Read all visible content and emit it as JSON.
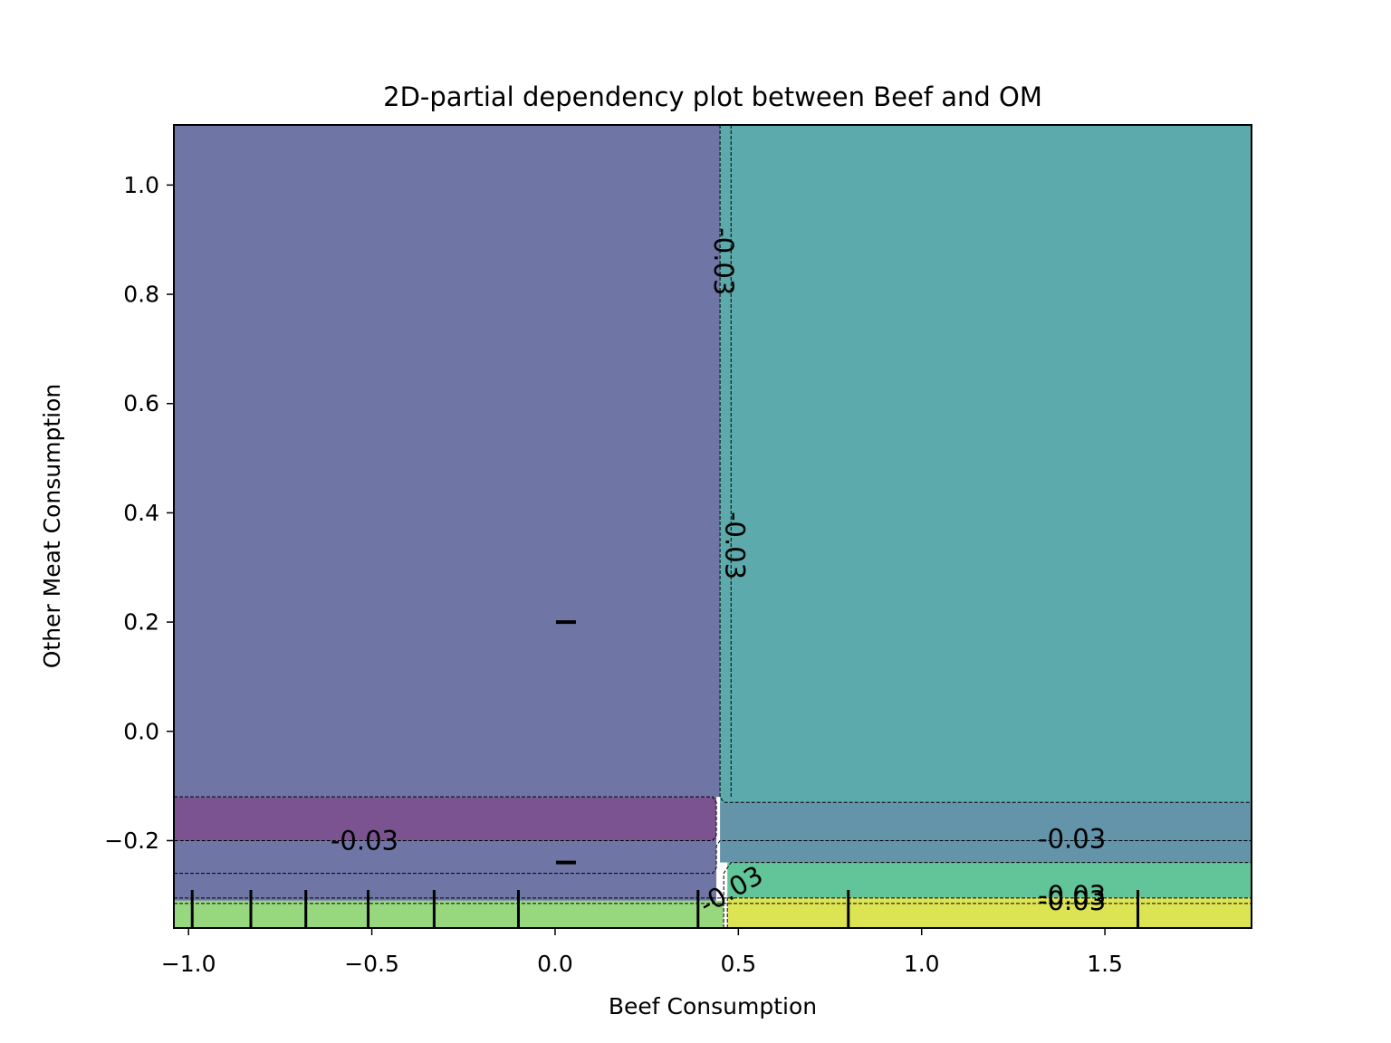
{
  "chart_data": {
    "type": "heatmap",
    "subtype": "filled-contour",
    "title": "2D-partial dependency plot between Beef and OM",
    "xlabel": "Beef Consumption",
    "ylabel": "Other Meat Consumption",
    "xlim": [
      -1.04,
      1.9
    ],
    "ylim": [
      -0.36,
      1.11
    ],
    "x_ticks": [
      -1.0,
      -0.5,
      0.0,
      0.5,
      1.0,
      1.5
    ],
    "x_tick_labels": [
      "−1.0",
      "−0.5",
      "0.0",
      "0.5",
      "1.0",
      "1.5"
    ],
    "y_ticks": [
      -0.2,
      0.0,
      0.2,
      0.4,
      0.6,
      0.8,
      1.0
    ],
    "y_tick_labels": [
      "−0.2",
      "0.0",
      "0.2",
      "0.4",
      "0.6",
      "0.8",
      "1.0"
    ],
    "grid": false,
    "regions": [
      {
        "x0": -1.04,
        "x1": 0.45,
        "y0": -0.12,
        "y1": 1.11,
        "color": "#6f76a6"
      },
      {
        "x0": 0.45,
        "x1": 1.9,
        "y0": -0.13,
        "y1": 1.11,
        "color": "#5caaac"
      },
      {
        "x0": -1.04,
        "x1": 0.44,
        "y0": -0.2,
        "y1": -0.12,
        "color": "#7a5390"
      },
      {
        "x0": -1.04,
        "x1": 0.44,
        "y0": -0.31,
        "y1": -0.2,
        "color": "#6f76a6"
      },
      {
        "x0": 0.45,
        "x1": 1.9,
        "y0": -0.24,
        "y1": -0.13,
        "color": "#6494aa"
      },
      {
        "x0": 0.47,
        "x1": 1.9,
        "y0": -0.305,
        "y1": -0.24,
        "color": "#62c599"
      },
      {
        "x0": -1.04,
        "x1": 0.46,
        "y0": -0.36,
        "y1": -0.31,
        "color": "#97d87e"
      },
      {
        "x0": 0.47,
        "x1": 1.9,
        "y0": -0.36,
        "y1": -0.305,
        "color": "#dce454"
      }
    ],
    "contour_lines": [
      {
        "points": [
          [
            -1.04,
            -0.12
          ],
          [
            0.43,
            -0.12
          ],
          [
            0.44,
            -0.13
          ],
          [
            0.44,
            -0.19
          ],
          [
            0.43,
            -0.2
          ],
          [
            -1.04,
            -0.2
          ]
        ]
      },
      {
        "points": [
          [
            -1.04,
            -0.26
          ],
          [
            0.43,
            -0.26
          ],
          [
            0.44,
            -0.25
          ],
          [
            0.44,
            -0.21
          ],
          [
            0.45,
            -0.2
          ],
          [
            1.9,
            -0.2
          ]
        ]
      },
      {
        "points": [
          [
            0.45,
            1.11
          ],
          [
            0.45,
            -0.12
          ],
          [
            0.46,
            -0.13
          ],
          [
            1.9,
            -0.13
          ]
        ]
      },
      {
        "points": [
          [
            0.48,
            1.11
          ],
          [
            0.48,
            -0.12
          ]
        ]
      },
      {
        "points": [
          [
            0.46,
            -0.36
          ],
          [
            0.46,
            -0.26
          ],
          [
            0.48,
            -0.24
          ],
          [
            1.9,
            -0.24
          ]
        ]
      },
      {
        "points": [
          [
            -1.04,
            -0.305
          ],
          [
            1.9,
            -0.305
          ]
        ]
      },
      {
        "points": [
          [
            -1.04,
            -0.315
          ],
          [
            1.9,
            -0.315
          ]
        ]
      },
      {
        "points": [
          [
            0.47,
            -0.36
          ],
          [
            0.47,
            -0.3
          ]
        ]
      }
    ],
    "contour_labels": [
      {
        "text": "-0.03",
        "x": 0.46,
        "y": 0.86,
        "rotation": 90
      },
      {
        "text": "-0.03",
        "x": 0.49,
        "y": 0.34,
        "rotation": 90
      },
      {
        "text": "-0.03",
        "x": -0.52,
        "y": -0.2,
        "rotation": 0
      },
      {
        "text": "-0.03",
        "x": 1.41,
        "y": -0.197,
        "rotation": 0
      },
      {
        "text": "-0.03",
        "x": 0.48,
        "y": -0.29,
        "rotation": -30
      },
      {
        "text": "-0.03",
        "x": 1.41,
        "y": -0.3,
        "rotation": 0
      },
      {
        "text": "-0.03",
        "x": 1.41,
        "y": -0.31,
        "rotation": 0
      }
    ],
    "x_deciles": [
      -0.99,
      -0.83,
      -0.68,
      -0.51,
      -0.33,
      -0.1,
      0.39,
      0.8,
      1.59
    ],
    "y_deciles": [
      -0.24,
      0.2
    ]
  }
}
